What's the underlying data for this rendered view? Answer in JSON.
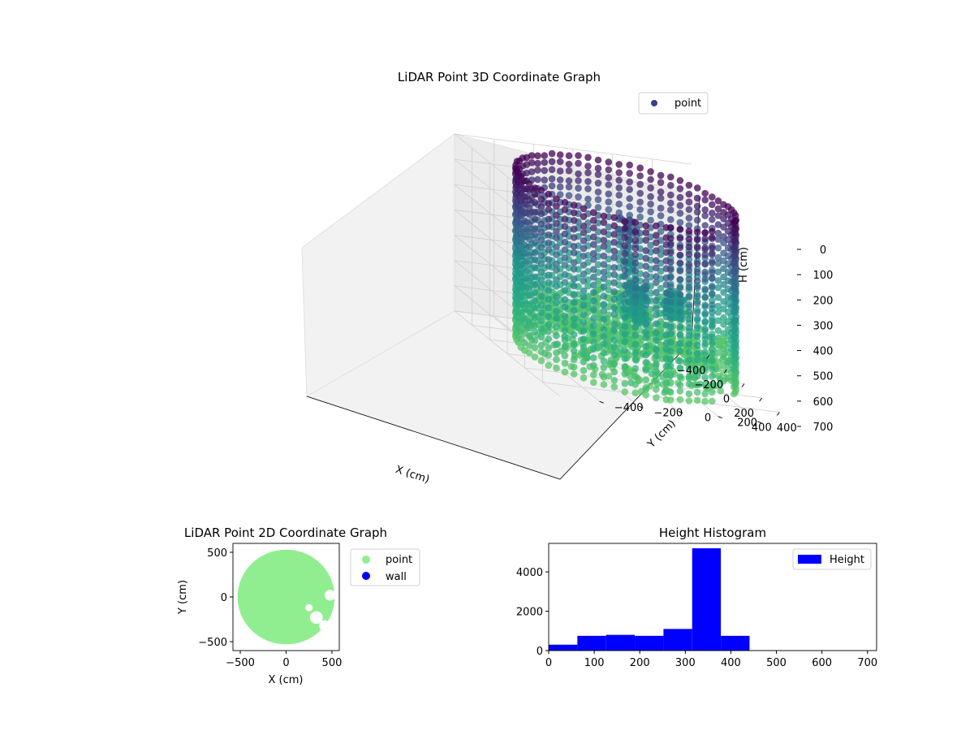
{
  "chart_data": [
    {
      "type": "scatter",
      "projection": "3d",
      "title": "LiDAR Point 3D Coordinate Graph",
      "xlabel": "X (cm)",
      "ylabel": "Y (cm)",
      "zlabel": "H (cm)",
      "xlim": [
        -600,
        600
      ],
      "ylim": [
        -600,
        600
      ],
      "zlim": [
        0,
        700
      ],
      "z_inverted": true,
      "x_ticks": [
        "−400",
        "−200",
        "0",
        "200",
        "400"
      ],
      "y_ticks": [
        "−400",
        "−200",
        "0",
        "200",
        "400"
      ],
      "z_ticks": [
        "0",
        "100",
        "200",
        "300",
        "400",
        "500",
        "600",
        "700"
      ],
      "colormap": [
        "#440154",
        "#3b528b",
        "#21918c",
        "#27ad81",
        "#5ec962"
      ],
      "legend": {
        "placement": "top-right",
        "entries": [
          {
            "label": "point",
            "color": "#3b3f8c"
          }
        ]
      },
      "series": [
        {
          "name": "point",
          "wall_ring": {
            "radius": 510,
            "height_range": [
              0,
              700
            ],
            "gap_angle_deg": [
              30,
              50
            ]
          },
          "interior_clusters": [
            {
              "center": [
                -200,
                100
              ],
              "height_range": [
                150,
                650
              ]
            },
            {
              "center": [
                100,
                200
              ],
              "height_range": [
                350,
                450
              ]
            },
            {
              "center": [
                250,
                -50
              ],
              "height_range": [
                300,
                450
              ]
            }
          ]
        }
      ]
    },
    {
      "type": "scatter",
      "title": "LiDAR Point 2D Coordinate Graph",
      "xlabel": "X (cm)",
      "ylabel": "Y (cm)",
      "xlim": [
        -580,
        580
      ],
      "ylim": [
        -600,
        600
      ],
      "x_ticks": [
        "−500",
        "0",
        "500"
      ],
      "y_ticks": [
        "−500",
        "0",
        "500"
      ],
      "legend": {
        "placement": "outside-right",
        "entries": [
          {
            "label": "point",
            "color": "#90ee90"
          },
          {
            "label": "wall",
            "color": "#0000ff"
          }
        ]
      },
      "series": [
        {
          "name": "point",
          "color": "#90ee90",
          "shape": "filled disk of radius ~520 cm with clear pockets on the right side"
        },
        {
          "name": "wall",
          "color": "#0000ff"
        }
      ]
    },
    {
      "type": "bar",
      "subtype": "histogram",
      "title": "Height Histogram",
      "xlim": [
        0,
        720
      ],
      "ylim": [
        0,
        5450
      ],
      "x_ticks": [
        "0",
        "100",
        "200",
        "300",
        "400",
        "500",
        "600",
        "700"
      ],
      "y_ticks": [
        "0",
        "2000",
        "4000"
      ],
      "bin_edges": [
        0,
        63,
        126,
        189,
        252,
        315,
        378,
        441,
        504,
        567,
        630,
        693
      ],
      "values": [
        300,
        750,
        800,
        750,
        1100,
        5200,
        750,
        20,
        10,
        10,
        10
      ],
      "color": "#0000ff",
      "legend": {
        "placement": "top-right",
        "entries": [
          {
            "label": "Height",
            "color": "#0000ff"
          }
        ]
      }
    }
  ]
}
